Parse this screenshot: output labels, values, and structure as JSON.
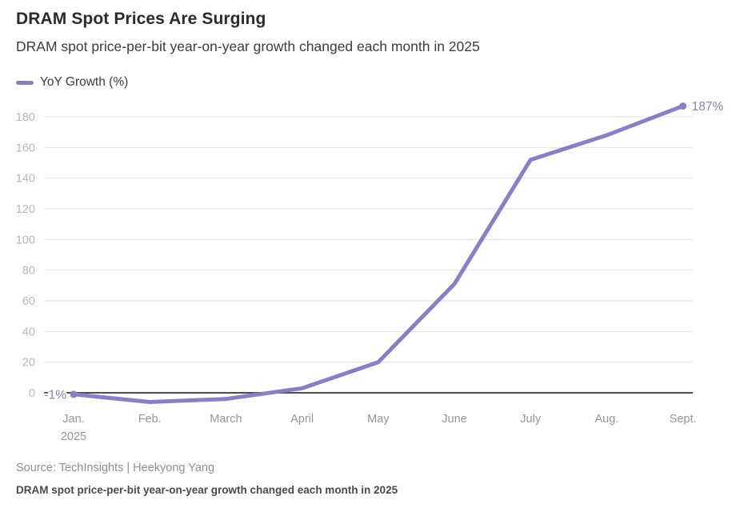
{
  "header": {
    "title": "DRAM Spot Prices Are Surging",
    "subtitle": "DRAM spot price-per-bit year-on-year growth changed each month in 2025"
  },
  "legend": {
    "label": "YoY Growth (%)"
  },
  "chart_data": {
    "type": "line",
    "title": "DRAM Spot Prices Are Surging",
    "subtitle": "DRAM spot price-per-bit year-on-year growth changed each month in 2025",
    "categories": [
      "Jan.",
      "Feb.",
      "March",
      "April",
      "May",
      "June",
      "July",
      "Aug.",
      "Sept."
    ],
    "x_secondary_label": "2025",
    "x_secondary_label_index": 0,
    "series": [
      {
        "name": "YoY Growth (%)",
        "values": [
          -1,
          -6,
          -4,
          3,
          20,
          71,
          152,
          168,
          187
        ]
      }
    ],
    "yticks": [
      0,
      20,
      40,
      60,
      80,
      100,
      120,
      140,
      160,
      180
    ],
    "ylim": [
      -10,
      190
    ],
    "grid": true,
    "legend_position": "top-left",
    "annotations": [
      {
        "point_index": 0,
        "text": "-1%",
        "side": "left"
      },
      {
        "point_index": 8,
        "text": "187%",
        "side": "right"
      }
    ],
    "colors": {
      "line": "#8b7dc8",
      "annotation_text": "#8b7dc8",
      "gridline": "#e2e2e2",
      "zero_line": "#4d4d4d",
      "y_tick_text": "#b7b7b7",
      "x_tick_text": "#969696"
    }
  },
  "footer": {
    "source": "Source: TechInsights | Heekyong Yang",
    "caption": "DRAM spot price-per-bit year-on-year growth changed each month in 2025"
  }
}
